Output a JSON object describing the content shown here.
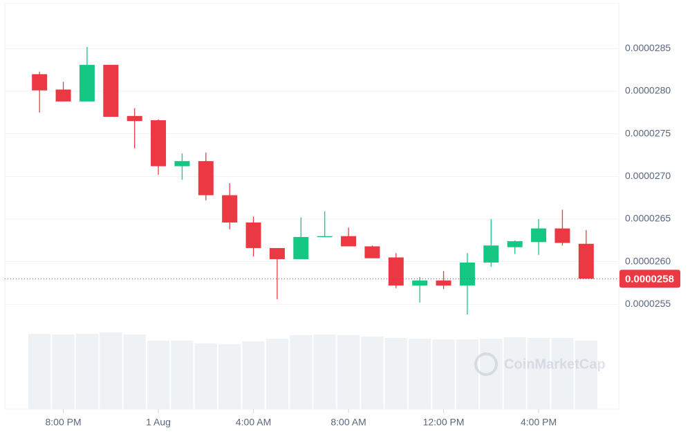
{
  "chart_data": {
    "type": "candlestick",
    "categories": [
      null,
      "8:00 PM",
      null,
      null,
      null,
      "1 Aug",
      null,
      null,
      null,
      "4:00 AM",
      null,
      null,
      null,
      "8:00 AM",
      null,
      null,
      null,
      "12:00 PM",
      null,
      null,
      null,
      "4:00 PM",
      null,
      null
    ],
    "open": [
      2.82e-05,
      2.802e-05,
      2.788e-05,
      2.831e-05,
      2.771e-05,
      2.766e-05,
      2.712e-05,
      2.718e-05,
      2.678e-05,
      2.646e-05,
      2.616e-05,
      2.603e-05,
      2.629e-05,
      2.63e-05,
      2.618e-05,
      2.605e-05,
      2.572e-05,
      2.578e-05,
      2.572e-05,
      2.599e-05,
      2.617e-05,
      2.623e-05,
      2.639e-05,
      2.621e-05
    ],
    "high": [
      2.823e-05,
      2.811e-05,
      2.852e-05,
      2.831e-05,
      2.78e-05,
      2.767e-05,
      2.727e-05,
      2.728e-05,
      2.692e-05,
      2.653e-05,
      2.616e-05,
      2.652e-05,
      2.659e-05,
      2.64e-05,
      2.619e-05,
      2.61e-05,
      2.582e-05,
      2.589e-05,
      2.61e-05,
      2.65e-05,
      2.625e-05,
      2.65e-05,
      2.661e-05,
      2.637e-05
    ],
    "low": [
      2.775e-05,
      2.788e-05,
      2.788e-05,
      2.77e-05,
      2.733e-05,
      2.702e-05,
      2.696e-05,
      2.672e-05,
      2.638e-05,
      2.606e-05,
      2.556e-05,
      2.603e-05,
      2.629e-05,
      2.618e-05,
      2.604e-05,
      2.569e-05,
      2.552e-05,
      2.568e-05,
      2.538e-05,
      2.594e-05,
      2.609e-05,
      2.608e-05,
      2.619e-05,
      2.58e-05
    ],
    "close": [
      2.801e-05,
      2.788e-05,
      2.831e-05,
      2.77e-05,
      2.765e-05,
      2.712e-05,
      2.718e-05,
      2.678e-05,
      2.646e-05,
      2.616e-05,
      2.603e-05,
      2.629e-05,
      2.63e-05,
      2.618e-05,
      2.604e-05,
      2.572e-05,
      2.578e-05,
      2.572e-05,
      2.599e-05,
      2.619e-05,
      2.624e-05,
      2.639e-05,
      2.622e-05,
      2.58e-05
    ],
    "volume": [
      109,
      108,
      109,
      111,
      108,
      99,
      99,
      95,
      94,
      98,
      102,
      107,
      108,
      107,
      105,
      103,
      102,
      101,
      101,
      102,
      104,
      103,
      103,
      99
    ],
    "up_color": "#16c784",
    "down_color": "#ea3943",
    "volume_color": "#eff2f5",
    "ylim": [
      2.427e-05,
      2.903e-05
    ],
    "yticks": [
      {
        "value": 2.55e-05,
        "label": "0.0000255"
      },
      {
        "value": 2.6e-05,
        "label": "0.0000260"
      },
      2.65e-05,
      {
        "value": 2.7e-05,
        "label": "0.0000270"
      },
      2.75e-05,
      {
        "value": 2.8e-05,
        "label": "0.0000280"
      },
      2.85e-05
    ],
    "grid": true,
    "last_price": 2.58e-05,
    "watermark": "CoinMarketCap"
  }
}
